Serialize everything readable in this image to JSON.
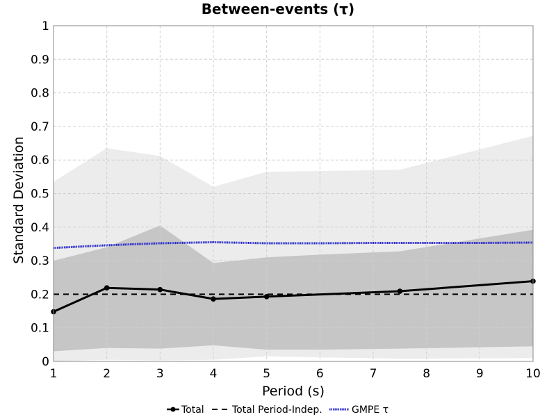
{
  "chart_data": {
    "type": "line",
    "title": "Between-events (τ)",
    "xlabel": "Period (s)",
    "ylabel": "Standard Deviation",
    "xlim": [
      1,
      10
    ],
    "ylim": [
      0,
      1
    ],
    "x_ticks": [
      "1",
      "2",
      "3",
      "4",
      "5",
      "6",
      "7",
      "8",
      "9",
      "10"
    ],
    "y_ticks": [
      "0",
      "0.1",
      "0.2",
      "0.3",
      "0.4",
      "0.5",
      "0.6",
      "0.7",
      "0.8",
      "0.9",
      "1"
    ],
    "grid": true,
    "legend_position": "bottom-center",
    "bands": [
      {
        "fill": "#ececec",
        "x": [
          1,
          2,
          3,
          4,
          5,
          6,
          7.5,
          10
        ],
        "upper": [
          0.535,
          0.635,
          0.612,
          0.52,
          0.565,
          0.567,
          0.571,
          0.672
        ],
        "lower": [
          0.0,
          0.005,
          0.003,
          0.005,
          0.015,
          0.012,
          0.008,
          0.01
        ]
      },
      {
        "fill": "#c6c6c6",
        "x": [
          1,
          2,
          3,
          4,
          5,
          6,
          7.5,
          10
        ],
        "upper": [
          0.3,
          0.34,
          0.405,
          0.293,
          0.31,
          0.318,
          0.328,
          0.392
        ],
        "lower": [
          0.03,
          0.04,
          0.038,
          0.048,
          0.035,
          0.035,
          0.038,
          0.045
        ]
      }
    ],
    "series": [
      {
        "name": "Total",
        "color": "#000000",
        "style": "solid-markers",
        "x": [
          1,
          2,
          3,
          4,
          5,
          7.5,
          10
        ],
        "values": [
          0.148,
          0.219,
          0.214,
          0.186,
          0.193,
          0.209,
          0.239
        ]
      },
      {
        "name": "Total Period-Indep.",
        "color": "#000000",
        "style": "dashed",
        "x": [
          1,
          10
        ],
        "values": [
          0.2,
          0.2
        ]
      },
      {
        "name": "GMPE τ",
        "color": "#2222cc",
        "style": "dotted",
        "x": [
          1,
          2,
          3,
          4,
          5,
          6,
          7,
          8,
          9,
          10
        ],
        "values": [
          0.338,
          0.346,
          0.352,
          0.355,
          0.352,
          0.352,
          0.353,
          0.353,
          0.353,
          0.354
        ]
      }
    ]
  }
}
